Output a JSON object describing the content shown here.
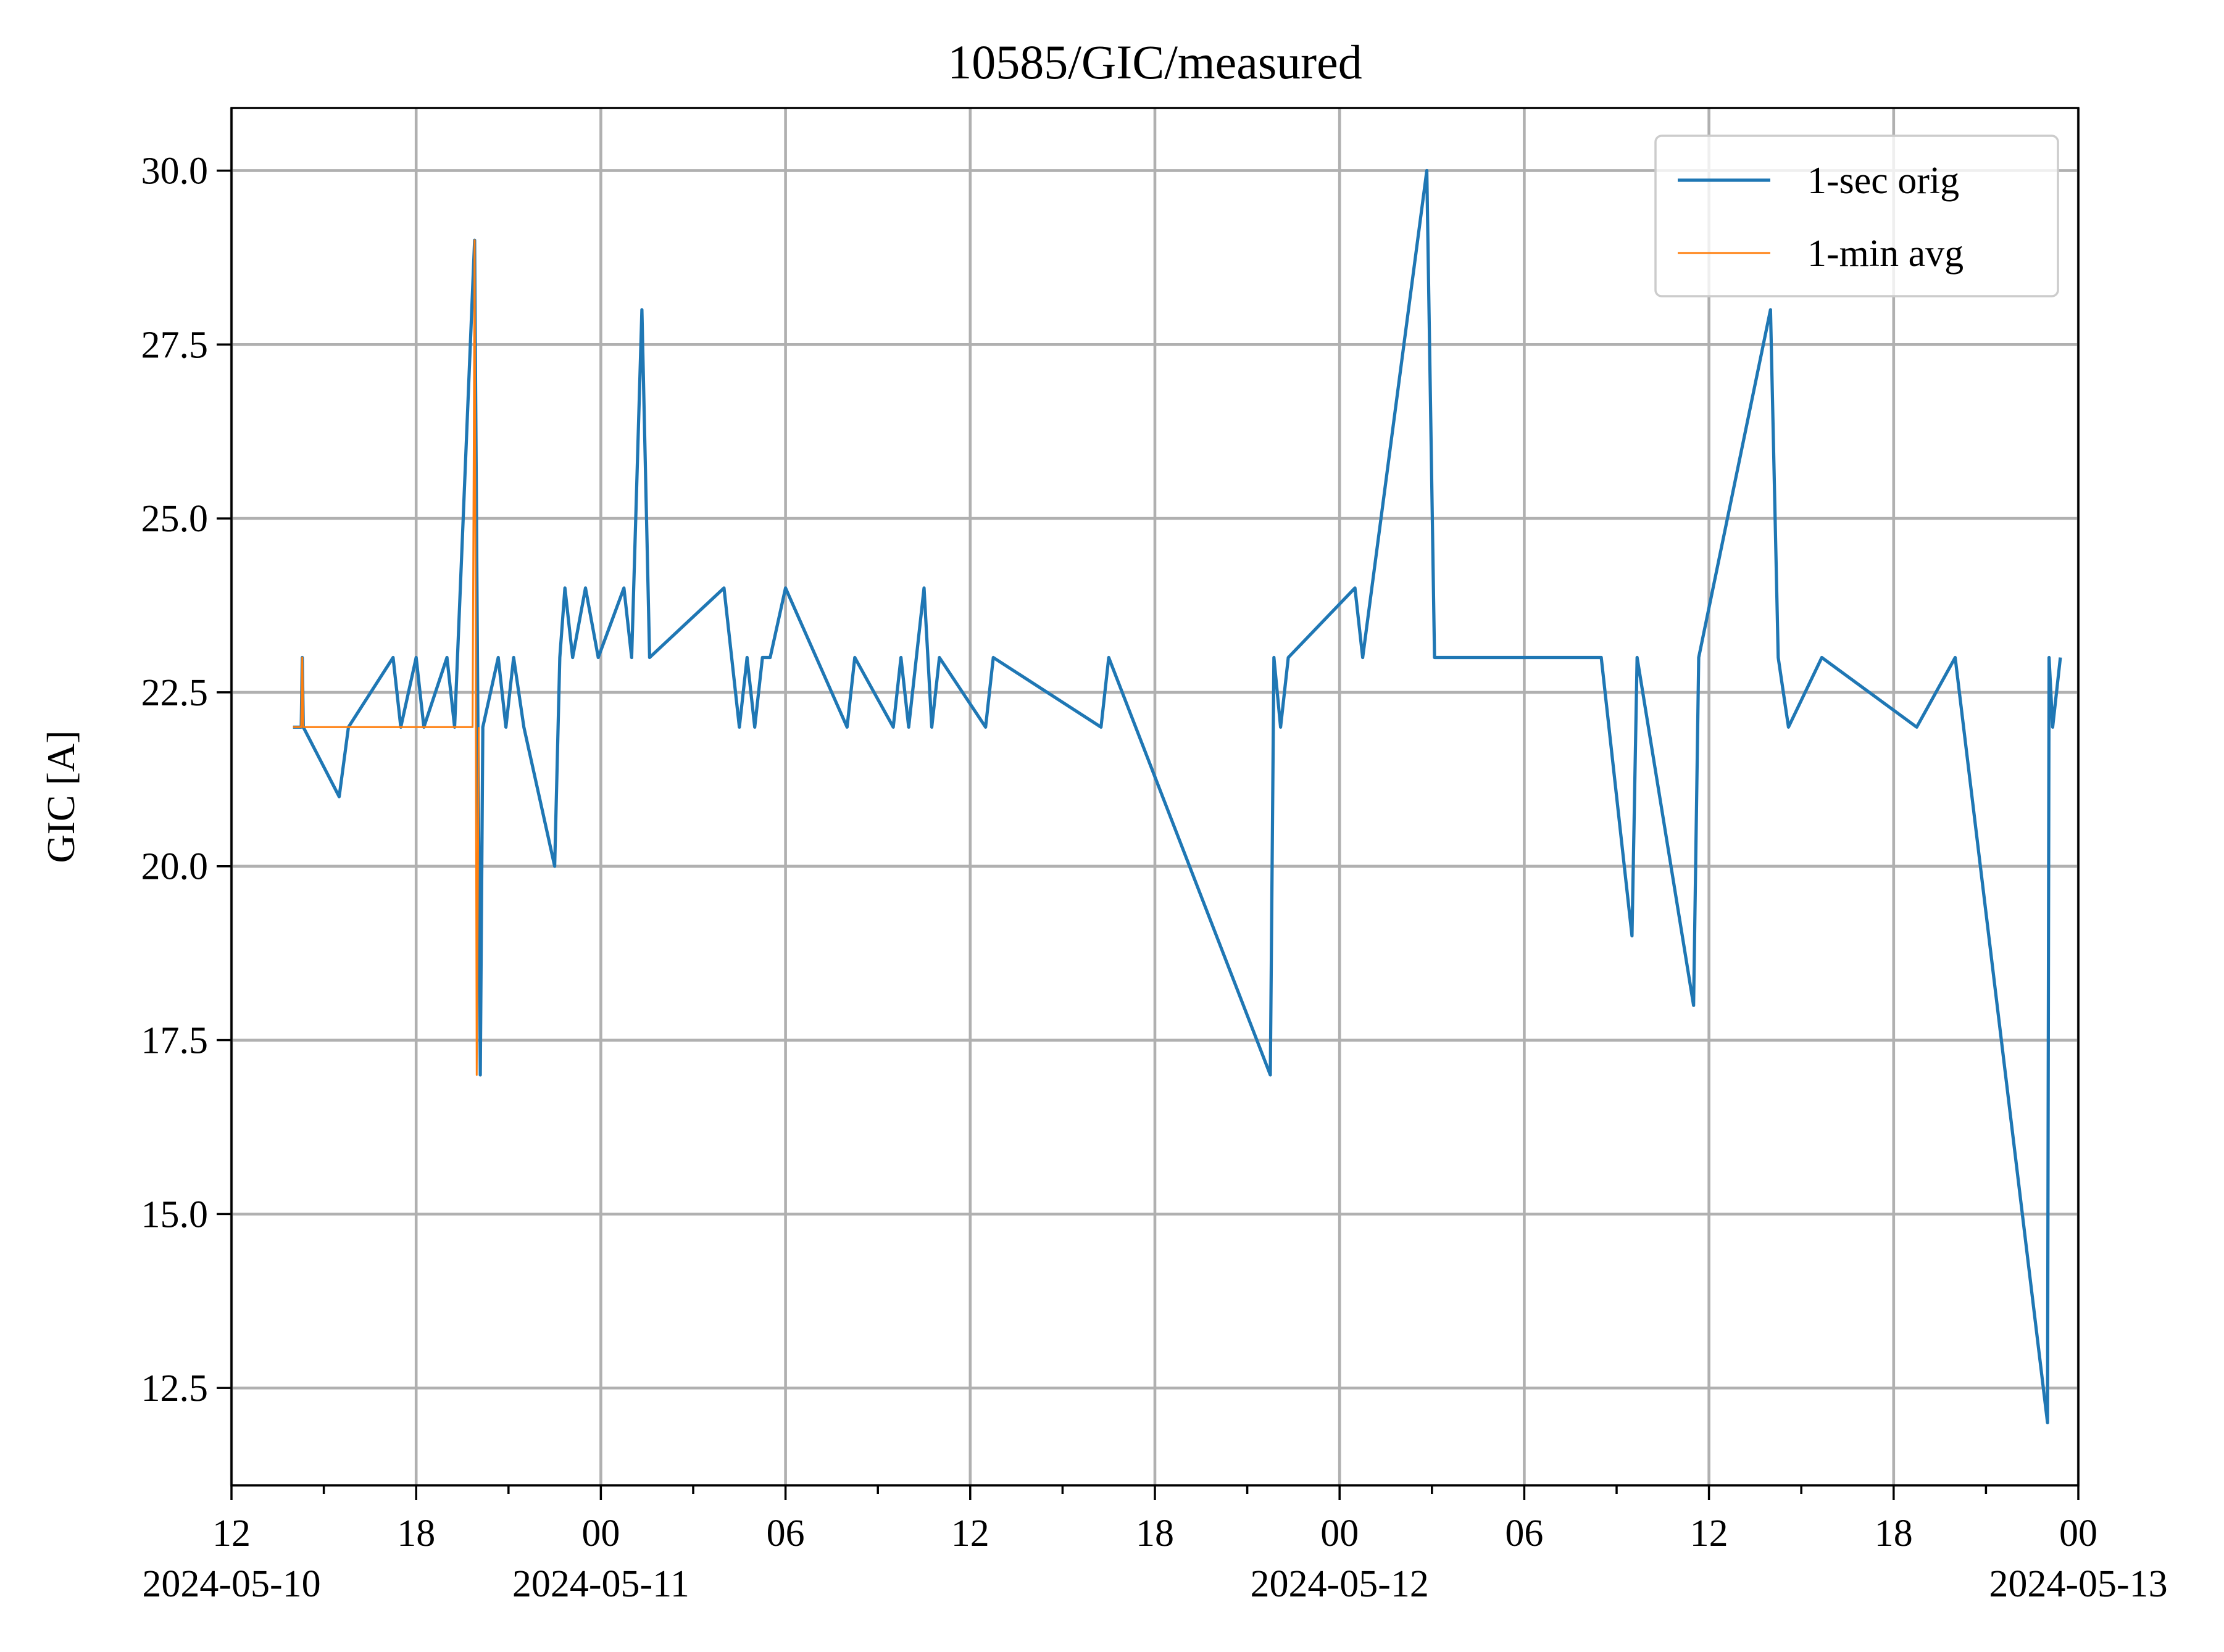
{
  "chart_data": {
    "type": "line",
    "title": "10585/GIC/measured",
    "xlabel": "",
    "ylabel": "GIC [A]",
    "x_unit": "datetime",
    "xlim": [
      "2024-05-10 12:00",
      "2024-05-13 00:00"
    ],
    "ylim": [
      11.1,
      30.9
    ],
    "grid": true,
    "legend_position": "top-right",
    "x_major_ticks": [
      {
        "x": "2024-05-10 12:00",
        "label": "12",
        "date": "2024-05-10"
      },
      {
        "x": "2024-05-10 18:00",
        "label": "18",
        "date": ""
      },
      {
        "x": "2024-05-11 00:00",
        "label": "00",
        "date": "2024-05-11"
      },
      {
        "x": "2024-05-11 06:00",
        "label": "06",
        "date": ""
      },
      {
        "x": "2024-05-11 12:00",
        "label": "12",
        "date": ""
      },
      {
        "x": "2024-05-11 18:00",
        "label": "18",
        "date": ""
      },
      {
        "x": "2024-05-12 00:00",
        "label": "00",
        "date": "2024-05-12"
      },
      {
        "x": "2024-05-12 06:00",
        "label": "06",
        "date": ""
      },
      {
        "x": "2024-05-12 12:00",
        "label": "12",
        "date": ""
      },
      {
        "x": "2024-05-12 18:00",
        "label": "18",
        "date": ""
      },
      {
        "x": "2024-05-13 00:00",
        "label": "00",
        "date": "2024-05-13"
      }
    ],
    "x_minor_ticks": [
      "2024-05-10 15:00",
      "2024-05-10 21:00",
      "2024-05-11 03:00",
      "2024-05-11 09:00",
      "2024-05-11 15:00",
      "2024-05-11 21:00",
      "2024-05-12 03:00",
      "2024-05-12 09:00",
      "2024-05-12 15:00",
      "2024-05-12 21:00"
    ],
    "y_ticks": [
      {
        "y": 12.5,
        "label": "12.5"
      },
      {
        "y": 15.0,
        "label": "15.0"
      },
      {
        "y": 17.5,
        "label": "17.5"
      },
      {
        "y": 20.0,
        "label": "20.0"
      },
      {
        "y": 22.5,
        "label": "22.5"
      },
      {
        "y": 25.0,
        "label": "25.0"
      },
      {
        "y": 27.5,
        "label": "27.5"
      },
      {
        "y": 30.0,
        "label": "30.0"
      }
    ],
    "series": [
      {
        "name": "1-sec orig",
        "color": "#1f77b4",
        "x": [
          "2024-05-10 14:00",
          "2024-05-10 14:16",
          "2024-05-10 14:18",
          "2024-05-10 14:20",
          "2024-05-10 15:30",
          "2024-05-10 15:48",
          "2024-05-10 17:15",
          "2024-05-10 17:30",
          "2024-05-10 18:00",
          "2024-05-10 18:15",
          "2024-05-10 19:00",
          "2024-05-10 19:15",
          "2024-05-10 19:54",
          "2024-05-10 20:05",
          "2024-05-10 20:10",
          "2024-05-10 20:40",
          "2024-05-10 20:55",
          "2024-05-10 21:10",
          "2024-05-10 21:30",
          "2024-05-10 22:30",
          "2024-05-10 22:40",
          "2024-05-10 22:50",
          "2024-05-10 23:05",
          "2024-05-10 23:30",
          "2024-05-10 23:55",
          "2024-05-11 00:45",
          "2024-05-11 01:00",
          "2024-05-11 01:20",
          "2024-05-11 01:35",
          "2024-05-11 04:00",
          "2024-05-11 04:30",
          "2024-05-11 04:45",
          "2024-05-11 05:00",
          "2024-05-11 05:15",
          "2024-05-11 05:30",
          "2024-05-11 06:00",
          "2024-05-11 08:00",
          "2024-05-11 08:15",
          "2024-05-11 09:30",
          "2024-05-11 09:45",
          "2024-05-11 10:00",
          "2024-05-11 10:30",
          "2024-05-11 10:45",
          "2024-05-11 11:00",
          "2024-05-11 12:30",
          "2024-05-11 12:45",
          "2024-05-11 16:15",
          "2024-05-11 16:30",
          "2024-05-11 21:45",
          "2024-05-11 21:52",
          "2024-05-11 22:05",
          "2024-05-11 22:20",
          "2024-05-12 00:30",
          "2024-05-12 00:45",
          "2024-05-12 02:50",
          "2024-05-12 03:05",
          "2024-05-12 08:30",
          "2024-05-12 09:30",
          "2024-05-12 09:40",
          "2024-05-12 11:30",
          "2024-05-12 11:40",
          "2024-05-12 14:00",
          "2024-05-12 14:15",
          "2024-05-12 14:35",
          "2024-05-12 15:40",
          "2024-05-12 18:45",
          "2024-05-12 20:00",
          "2024-05-12 23:00",
          "2024-05-12 23:03",
          "2024-05-12 23:10",
          "2024-05-12 23:25"
        ],
        "values": [
          22,
          22,
          23,
          22,
          21,
          22,
          23,
          22,
          23,
          22,
          23,
          22,
          29,
          17,
          22,
          23,
          22,
          23,
          22,
          20,
          23,
          24,
          23,
          24,
          23,
          24,
          23,
          28,
          23,
          24,
          22,
          23,
          22,
          23,
          23,
          24,
          22,
          23,
          22,
          23,
          22,
          24,
          22,
          23,
          22,
          23,
          22,
          23,
          17,
          23,
          22,
          23,
          24,
          23,
          30,
          23,
          23,
          19,
          23,
          18,
          23,
          28,
          23,
          22,
          23,
          22,
          23,
          12,
          23,
          22,
          23
        ]
      },
      {
        "name": "1-min avg",
        "color": "#ff7f0e",
        "x": [
          "2024-05-10 14:00",
          "2024-05-10 14:16",
          "2024-05-10 14:18",
          "2024-05-10 14:20",
          "2024-05-10 19:50",
          "2024-05-10 19:54",
          "2024-05-10 19:58",
          "2024-05-10 20:02"
        ],
        "values": [
          22,
          22,
          23,
          22,
          22,
          29,
          17,
          22
        ]
      }
    ]
  }
}
